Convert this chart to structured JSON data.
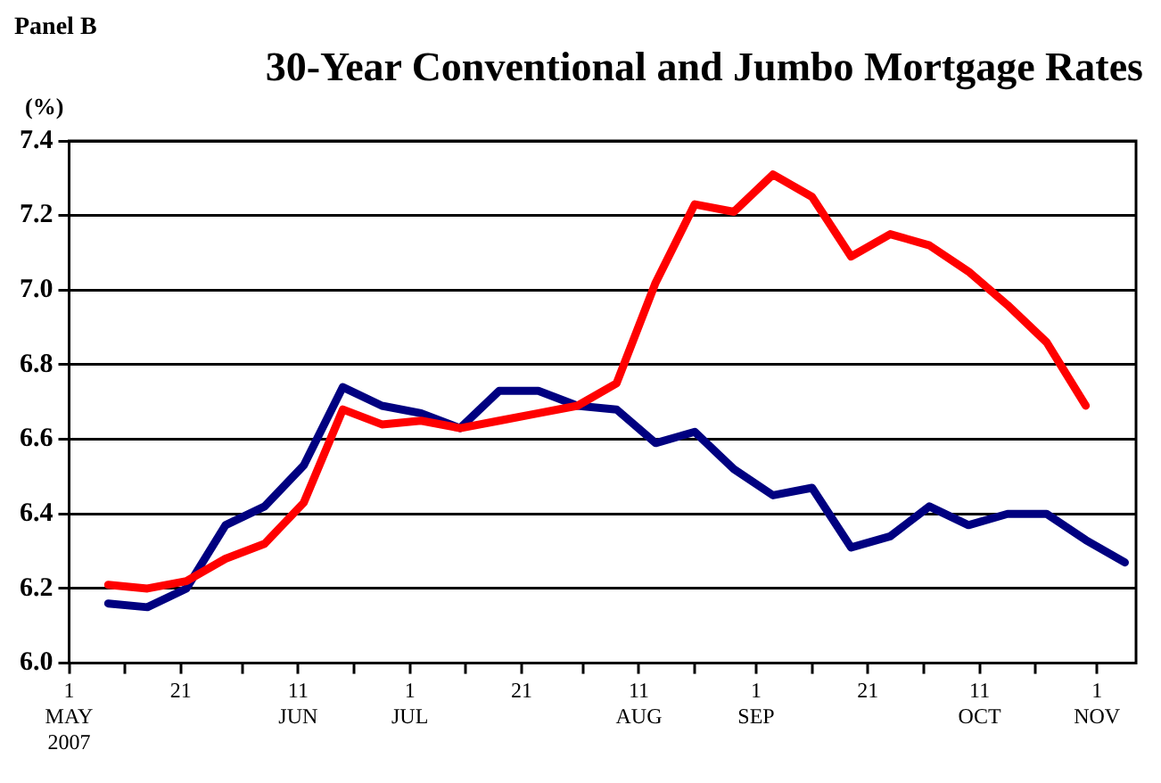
{
  "chart_data": {
    "type": "line",
    "title": "30-Year Conventional and Jumbo Mortgage Rates",
    "ylabel": "(%)",
    "annotations": [
      "Panel B"
    ],
    "x": [
      "2007-05-08",
      "2007-05-15",
      "2007-05-22",
      "2007-05-29",
      "2007-06-05",
      "2007-06-12",
      "2007-06-19",
      "2007-06-26",
      "2007-07-03",
      "2007-07-10",
      "2007-07-17",
      "2007-07-24",
      "2007-07-31",
      "2007-08-07",
      "2007-08-14",
      "2007-08-21",
      "2007-08-28",
      "2007-09-04",
      "2007-09-11",
      "2007-09-18",
      "2007-09-25",
      "2007-10-02",
      "2007-10-09",
      "2007-10-16",
      "2007-10-23",
      "2007-10-30",
      "2007-11-06"
    ],
    "series": [
      {
        "color": "#ff0000",
        "values": [
          6.21,
          6.2,
          6.22,
          6.28,
          6.32,
          6.43,
          6.68,
          6.64,
          6.65,
          6.63,
          6.65,
          6.67,
          6.69,
          6.75,
          7.02,
          7.23,
          7.21,
          7.31,
          7.25,
          7.09,
          7.15,
          7.12,
          7.05,
          6.96,
          6.86,
          6.69,
          null
        ]
      },
      {
        "color": "#000080",
        "values": [
          6.16,
          6.15,
          6.2,
          6.37,
          6.42,
          6.53,
          6.74,
          6.69,
          6.67,
          6.63,
          6.73,
          6.73,
          6.69,
          6.68,
          6.59,
          6.62,
          6.52,
          6.45,
          6.47,
          6.31,
          6.34,
          6.42,
          6.37,
          6.4,
          6.4,
          6.33,
          6.27
        ]
      }
    ],
    "xlim": [
      "2007-05-01",
      "2007-11-08"
    ],
    "xticks": [
      {
        "value": "2007-05-01",
        "label": "1\nMAY\n2007"
      },
      {
        "value": "2007-05-11",
        "label": null
      },
      {
        "value": "2007-05-21",
        "label": "21"
      },
      {
        "value": "2007-06-01",
        "label": null
      },
      {
        "value": "2007-06-11",
        "label": "11\nJUN"
      },
      {
        "value": "2007-06-21",
        "label": null
      },
      {
        "value": "2007-07-01",
        "label": "1\nJUL"
      },
      {
        "value": "2007-07-11",
        "label": null
      },
      {
        "value": "2007-07-21",
        "label": "21"
      },
      {
        "value": "2007-08-01",
        "label": null
      },
      {
        "value": "2007-08-11",
        "label": "11\nAUG"
      },
      {
        "value": "2007-08-21",
        "label": null
      },
      {
        "value": "2007-09-01",
        "label": "1\nSEP"
      },
      {
        "value": "2007-09-11",
        "label": null
      },
      {
        "value": "2007-09-21",
        "label": "21"
      },
      {
        "value": "2007-10-01",
        "label": null
      },
      {
        "value": "2007-10-11",
        "label": "11\nOCT"
      },
      {
        "value": "2007-10-21",
        "label": null
      },
      {
        "value": "2007-11-01",
        "label": "1\nNOV"
      }
    ],
    "ylim": [
      6.0,
      7.4
    ],
    "yticks": [
      {
        "value": 6.0,
        "label": "6.0"
      },
      6.2,
      6.4,
      6.6,
      6.8,
      {
        "value": 7.0,
        "label": "7.0"
      },
      7.2,
      7.4
    ],
    "grid": "y",
    "legend": false,
    "marker": "none",
    "line_style": "solid"
  }
}
